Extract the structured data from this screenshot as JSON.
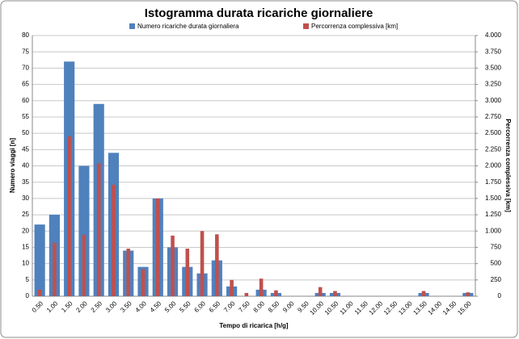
{
  "chart_data": {
    "type": "bar",
    "title": "Istogramma durata ricariche giornaliere",
    "xlabel": "Tempo di ricarica [h/g]",
    "ylabel": "Numero viaggi [n]",
    "y2label": "Percorrenza complessiva [km]",
    "categories": [
      "0.50",
      "1.00",
      "1.50",
      "2.00",
      "2.50",
      "3.00",
      "3.50",
      "4.00",
      "4.50",
      "5.00",
      "5.50",
      "6.00",
      "6.50",
      "7.00",
      "7.50",
      "8.00",
      "8.50",
      "9.00",
      "9.50",
      "10.00",
      "10.50",
      "11.00",
      "11.50",
      "12.00",
      "12.50",
      "13.00",
      "13.50",
      "14.00",
      "14.50",
      "15.00"
    ],
    "series": [
      {
        "name": "Numero ricariche durata giornaliera",
        "color": "#4f81bd",
        "values": [
          22,
          25,
          72,
          40,
          59,
          44,
          14,
          9,
          30,
          15,
          9,
          7,
          11,
          3,
          0,
          2,
          1,
          0,
          0,
          1,
          1,
          0,
          0,
          0,
          0,
          0,
          1,
          0,
          0,
          1
        ]
      },
      {
        "name": "Percorrenza complessiva [km]",
        "color": "#c0504d",
        "axis": "y2",
        "values": [
          100,
          820,
          2450,
          940,
          2040,
          1710,
          730,
          410,
          1500,
          930,
          730,
          1000,
          950,
          250,
          50,
          270,
          90,
          0,
          0,
          140,
          80,
          0,
          0,
          0,
          0,
          0,
          80,
          0,
          0,
          60
        ]
      }
    ],
    "ylim": [
      0,
      80
    ],
    "yticks": [
      0,
      5,
      10,
      15,
      20,
      25,
      30,
      35,
      40,
      45,
      50,
      55,
      60,
      65,
      70,
      75,
      80
    ],
    "y2lim": [
      0,
      4000
    ],
    "y2ticks": [
      0,
      250,
      500,
      750,
      {
        "value": 1000,
        "label": "1.000"
      },
      {
        "value": 1250,
        "label": "1.250"
      },
      {
        "value": 1500,
        "label": "1.500"
      },
      {
        "value": 1750,
        "label": "1.750"
      },
      {
        "value": 2000,
        "label": "2.000"
      },
      {
        "value": 2250,
        "label": "2.250"
      },
      {
        "value": 2500,
        "label": "2.500"
      },
      {
        "value": 2750,
        "label": "2.750"
      },
      {
        "value": 3000,
        "label": "3.000"
      },
      {
        "value": 3250,
        "label": "3.250"
      },
      {
        "value": 3500,
        "label": "3.500"
      },
      {
        "value": 3750,
        "label": "3.750"
      },
      {
        "value": 4000,
        "label": "4.000"
      }
    ],
    "grid": true
  }
}
